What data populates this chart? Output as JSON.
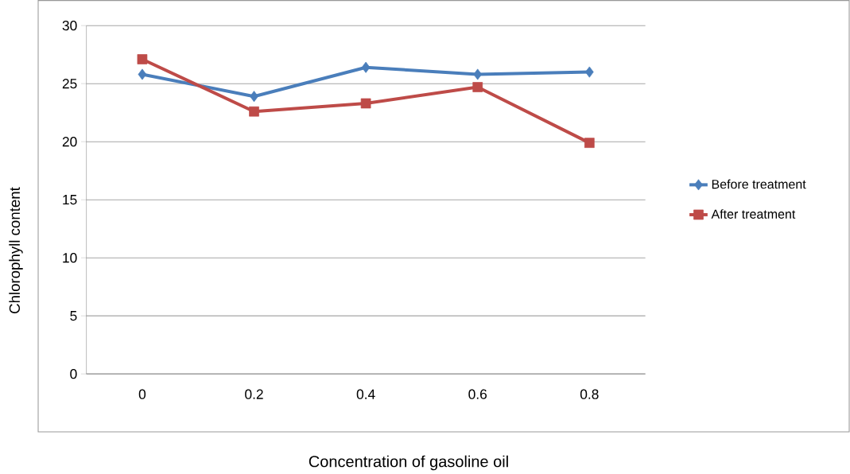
{
  "chart_data": {
    "type": "line",
    "xlabel": "Concentration of gasoline oil",
    "ylabel": "Chlorophyll content",
    "categories": [
      "0",
      "0.2",
      "0.4",
      "0.6",
      "0.8"
    ],
    "series": [
      {
        "name": "Before treatment",
        "color": "#4a7ebb",
        "marker": "diamond",
        "values": [
          25.8,
          23.9,
          26.4,
          25.8,
          26.0
        ]
      },
      {
        "name": "After treatment",
        "color": "#be4b48",
        "marker": "square",
        "values": [
          27.1,
          22.6,
          23.3,
          24.7,
          19.9
        ]
      }
    ],
    "ylim": [
      0,
      30
    ],
    "yticks": [
      0,
      5,
      10,
      15,
      20,
      25,
      30
    ],
    "grid": "y",
    "legend": "right",
    "line_style": "solid"
  }
}
